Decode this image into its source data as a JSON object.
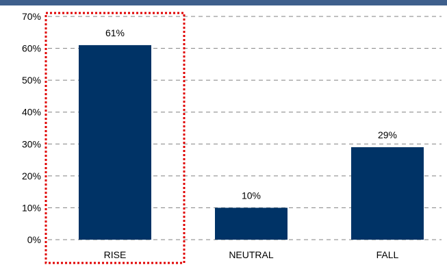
{
  "chart_data": {
    "type": "bar",
    "title": "",
    "xlabel": "",
    "ylabel": "",
    "categories": [
      "RISE",
      "NEUTRAL",
      "FALL"
    ],
    "values": [
      61,
      10,
      29
    ],
    "data_labels": [
      "61%",
      "10%",
      "29%"
    ],
    "y_ticks": [
      0,
      10,
      20,
      30,
      40,
      50,
      60,
      70
    ],
    "y_tick_labels": [
      "0%",
      "10%",
      "20%",
      "30%",
      "40%",
      "50%",
      "60%",
      "70%"
    ],
    "ylim": [
      0,
      70
    ],
    "grid": "horizontal dashed",
    "highlight": "RISE",
    "colors": {
      "bar": "#003366",
      "highlight_box": "#e00000",
      "gridline": "#808080",
      "top_bar": "#3e5f8c"
    }
  }
}
